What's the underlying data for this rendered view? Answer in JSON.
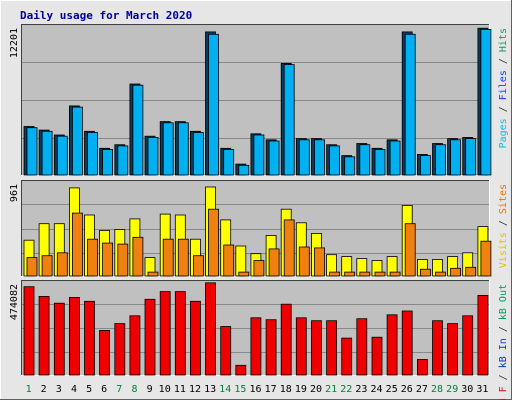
{
  "chart_data": {
    "type": "bar",
    "title": "Daily usage for March 2020",
    "categories": [
      "1",
      "2",
      "3",
      "4",
      "5",
      "6",
      "7",
      "8",
      "9",
      "10",
      "11",
      "12",
      "13",
      "14",
      "15",
      "16",
      "17",
      "18",
      "19",
      "20",
      "21",
      "22",
      "23",
      "24",
      "25",
      "26",
      "27",
      "28",
      "29",
      "30",
      "31"
    ],
    "weekend_days": [
      "1",
      "7",
      "8",
      "14",
      "15",
      "21",
      "22",
      "28",
      "29"
    ],
    "panels": [
      {
        "id": "top",
        "max_label": "12201",
        "ymax": 12201,
        "legend": [
          {
            "text": "Pages",
            "color": "#00c0e0"
          },
          {
            "text": " / ",
            "color": "#303030"
          },
          {
            "text": "Files",
            "color": "#0040ff"
          },
          {
            "text": " / ",
            "color": "#303030"
          },
          {
            "text": "Hits",
            "color": "#00a060"
          }
        ],
        "series": [
          {
            "name": "Hits",
            "color": "#0b3a5c",
            "values": [
              4000,
              3700,
              3300,
              5700,
              3600,
              2200,
              2500,
              7500,
              3200,
              4400,
              4400,
              3600,
              11800,
              2200,
              900,
              3400,
              2900,
              9200,
              3000,
              3000,
              2500,
              1600,
              2600,
              2200,
              2900,
              11800,
              1700,
              2600,
              3000,
              3100,
              12100
            ]
          },
          {
            "name": "Pages",
            "color": "#00b0f0",
            "values": [
              3900,
              3600,
              3200,
              5600,
              3500,
              2100,
              2400,
              7400,
              3100,
              4300,
              4300,
              3500,
              11600,
              2100,
              800,
              3300,
              2800,
              9100,
              2900,
              2900,
              2400,
              1500,
              2500,
              2100,
              2800,
              11600,
              1600,
              2500,
              2900,
              3000,
              12000
            ]
          }
        ]
      },
      {
        "id": "middle",
        "max_label": "961",
        "ymax": 961,
        "legend": [
          {
            "text": "Visits",
            "color": "#e0c000"
          },
          {
            "text": " / ",
            "color": "#303030"
          },
          {
            "text": "Sites",
            "color": "#f07000"
          }
        ],
        "series": [
          {
            "name": "Visits",
            "color": "#ffff00",
            "values": [
              370,
              540,
              540,
              910,
              630,
              470,
              480,
              590,
              190,
              640,
              630,
              380,
              920,
              580,
              310,
              230,
              420,
              690,
              550,
              440,
              220,
              200,
              180,
              160,
              200,
              730,
              170,
              170,
              200,
              240,
              510
            ]
          },
          {
            "name": "Sites",
            "color": "#f08010",
            "values": [
              190,
              210,
              240,
              650,
              380,
              340,
              330,
              400,
              40,
              380,
              380,
              210,
              690,
              320,
              40,
              160,
              280,
              580,
              300,
              290,
              40,
              40,
              40,
              40,
              40,
              540,
              70,
              40,
              80,
              90,
              360
            ]
          }
        ]
      },
      {
        "id": "bottom",
        "max_label": "474082",
        "ymax": 474082,
        "legend": [
          {
            "text": "kB F",
            "color": "#ff0000"
          },
          {
            "text": " / ",
            "color": "#303030"
          },
          {
            "text": "kB In",
            "color": "#0040c0"
          },
          {
            "text": " / ",
            "color": "#303030"
          },
          {
            "text": "kB Out",
            "color": "#00a060"
          }
        ],
        "series": [
          {
            "name": "kB F",
            "color": "#ee0000",
            "values": [
              455000,
              405000,
              370000,
              400000,
              380000,
              230000,
              265000,
              305000,
              390000,
              430000,
              430000,
              380000,
              475000,
              250000,
              50000,
              295000,
              285000,
              365000,
              295000,
              280000,
              280000,
              190000,
              290000,
              195000,
              310000,
              330000,
              80000,
              280000,
              265000,
              305000,
              410000
            ]
          }
        ]
      }
    ]
  }
}
